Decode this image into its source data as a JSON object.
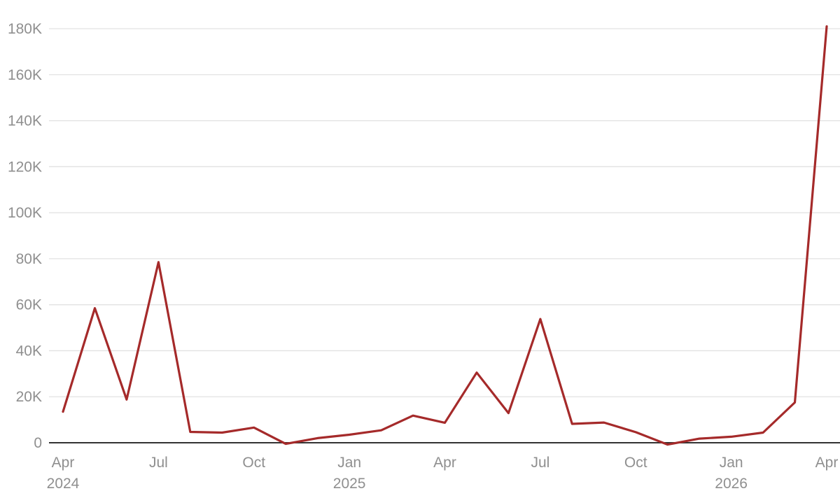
{
  "chart_data": {
    "type": "line",
    "title": "",
    "xlabel": "",
    "ylabel": "",
    "ylim": [
      0,
      180000
    ],
    "grid": true,
    "legend": "none",
    "y_ticks": [
      {
        "value": 0,
        "label": "0"
      },
      {
        "value": 20000,
        "label": "20K"
      },
      {
        "value": 40000,
        "label": "40K"
      },
      {
        "value": 60000,
        "label": "60K"
      },
      {
        "value": 80000,
        "label": "80K"
      },
      {
        "value": 100000,
        "label": "100K"
      },
      {
        "value": 120000,
        "label": "120K"
      },
      {
        "value": 140000,
        "label": "140K"
      },
      {
        "value": 160000,
        "label": "160K"
      },
      {
        "value": 180000,
        "label": "180K"
      }
    ],
    "x_ticks": [
      {
        "date": "2024-04",
        "label": "Apr",
        "year": "2024"
      },
      {
        "date": "2024-07",
        "label": "Jul",
        "year": ""
      },
      {
        "date": "2024-10",
        "label": "Oct",
        "year": ""
      },
      {
        "date": "2025-01",
        "label": "Jan",
        "year": "2025"
      },
      {
        "date": "2025-04",
        "label": "Apr",
        "year": ""
      },
      {
        "date": "2025-07",
        "label": "Jul",
        "year": ""
      },
      {
        "date": "2025-10",
        "label": "Oct",
        "year": ""
      },
      {
        "date": "2026-01",
        "label": "Jan",
        "year": "2026"
      },
      {
        "date": "2026-04",
        "label": "Apr",
        "year": ""
      }
    ],
    "series": [
      {
        "color": "#a52a2a",
        "points": [
          {
            "x": "2024-04",
            "y": 13500
          },
          {
            "x": "2024-05",
            "y": 58500
          },
          {
            "x": "2024-06",
            "y": 18800
          },
          {
            "x": "2024-07",
            "y": 78500
          },
          {
            "x": "2024-08",
            "y": 4700
          },
          {
            "x": "2024-09",
            "y": 4400
          },
          {
            "x": "2024-10",
            "y": 6600
          },
          {
            "x": "2024-11",
            "y": -500
          },
          {
            "x": "2024-12",
            "y": 2000
          },
          {
            "x": "2025-01",
            "y": 3500
          },
          {
            "x": "2025-02",
            "y": 5400
          },
          {
            "x": "2025-03",
            "y": 11800
          },
          {
            "x": "2025-04",
            "y": 8700
          },
          {
            "x": "2025-05",
            "y": 30500
          },
          {
            "x": "2025-06",
            "y": 12900
          },
          {
            "x": "2025-07",
            "y": 53800
          },
          {
            "x": "2025-08",
            "y": 8200
          },
          {
            "x": "2025-09",
            "y": 8800
          },
          {
            "x": "2025-10",
            "y": 4600
          },
          {
            "x": "2025-11",
            "y": -800
          },
          {
            "x": "2025-12",
            "y": 1800
          },
          {
            "x": "2026-01",
            "y": 2600
          },
          {
            "x": "2026-02",
            "y": 4400
          },
          {
            "x": "2026-03",
            "y": 17500
          },
          {
            "x": "2026-04",
            "y": 181000
          }
        ]
      }
    ]
  }
}
